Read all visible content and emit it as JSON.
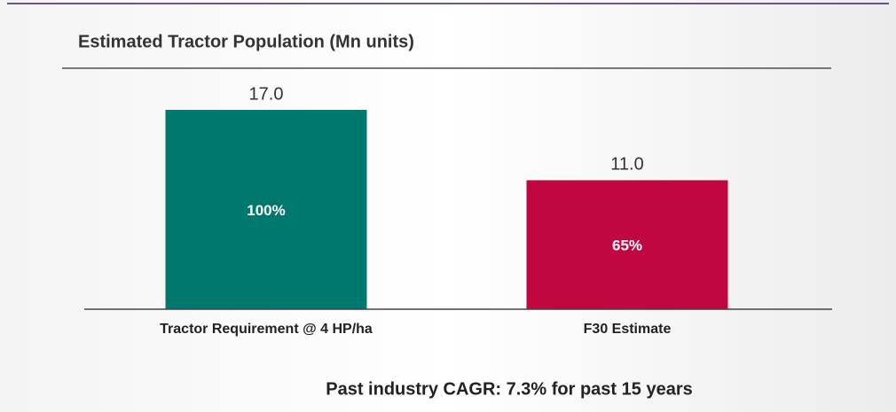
{
  "chart_data": {
    "type": "bar",
    "title": "Estimated Tractor Population (Mn units)",
    "categories": [
      "Tractor Requirement @ 4 HP/ha",
      "F30 Estimate"
    ],
    "values": [
      17,
      11
    ],
    "value_labels": [
      "17.0",
      "11.0"
    ],
    "inner_labels": [
      "100%",
      "65%"
    ],
    "colors": [
      "#00786e",
      "#c1073f"
    ],
    "footnote": "Past industry CAGR: 7.3% for past 15 years"
  }
}
